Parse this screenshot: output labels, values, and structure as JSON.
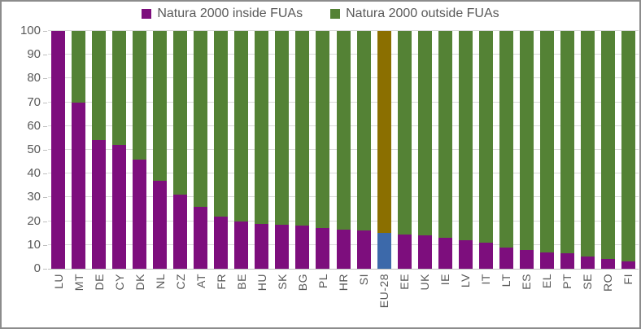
{
  "chart_data": {
    "type": "bar",
    "stacked": true,
    "stack_total": 100,
    "title": "",
    "xlabel": "",
    "ylabel": "",
    "ylim": [
      0,
      100
    ],
    "yticks": [
      0,
      10,
      20,
      30,
      40,
      50,
      60,
      70,
      80,
      90,
      100
    ],
    "grid": true,
    "legend_position": "top-center",
    "categories": [
      "LU",
      "MT",
      "DE",
      "CY",
      "DK",
      "NL",
      "CZ",
      "AT",
      "FR",
      "BE",
      "HU",
      "SK",
      "BG",
      "PL",
      "HR",
      "SI",
      "EU-28",
      "EE",
      "UK",
      "IE",
      "LV",
      "IT",
      "LT",
      "ES",
      "EL",
      "PT",
      "SE",
      "RO",
      "FI"
    ],
    "series": [
      {
        "name": "Natura 2000 inside FUAs",
        "color": "#7D0E7D",
        "values": [
          100,
          70,
          54,
          52,
          46,
          37,
          31,
          26,
          22,
          20,
          19,
          18.5,
          18,
          17,
          16.5,
          16,
          15,
          14.5,
          14,
          13,
          12,
          11,
          9,
          8,
          7,
          6.5,
          5,
          4,
          3
        ]
      },
      {
        "name": "Natura 2000 outside FUAs",
        "color": "#548235",
        "values": [
          0,
          30,
          46,
          48,
          54,
          63,
          69,
          74,
          78,
          80,
          81,
          81.5,
          82,
          83,
          83.5,
          84,
          85,
          85.5,
          86,
          87,
          88,
          89,
          91,
          92,
          93,
          93.5,
          95,
          96,
          97
        ]
      }
    ],
    "highlight": {
      "category": "EU-28",
      "inside_color": "#3C69AA",
      "outside_color": "#8B6F00"
    }
  },
  "colors": {
    "grid": "#D9D9D9",
    "axis": "#BFBFBF",
    "text": "#595959",
    "frame_border": "#8C8C8C",
    "background": "#FFFFFF"
  }
}
